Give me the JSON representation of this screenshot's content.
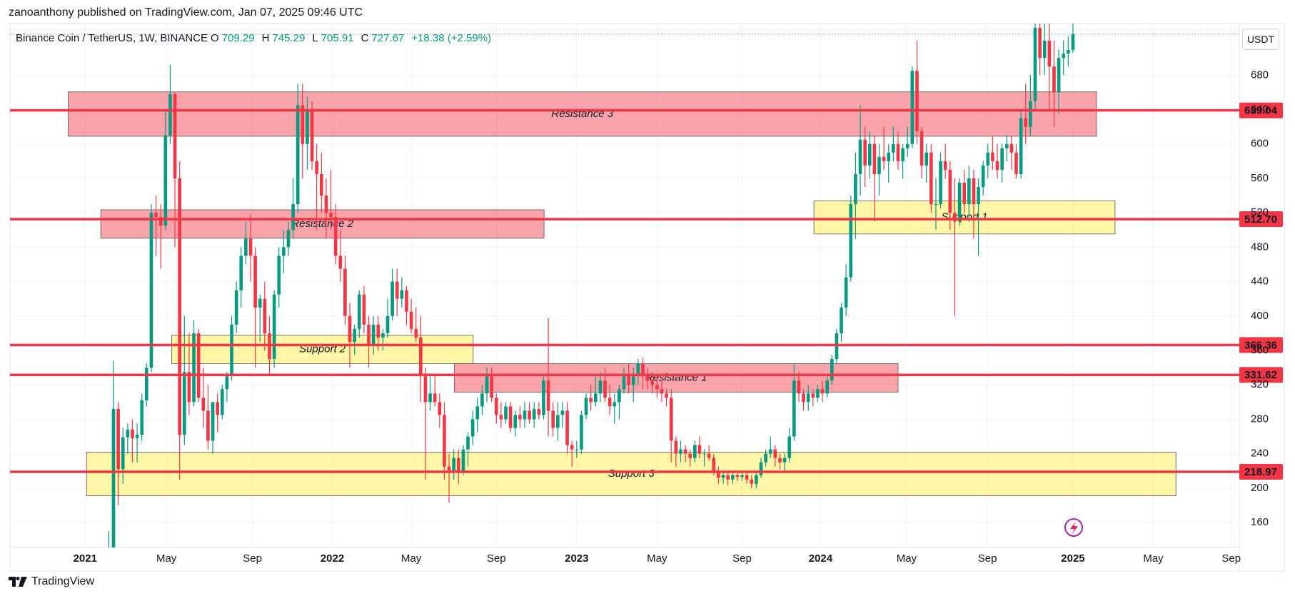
{
  "header": {
    "publisher": "zanoanthony published on TradingView.com, Jan 07, 2025 09:46 UTC"
  },
  "footer": {
    "brand": "TradingView"
  },
  "chart_data": {
    "type": "candlestick",
    "title": "Binance Coin / TetherUS, 1W, BINANCE",
    "legend_fields": [
      {
        "label": "O",
        "value": 709.29
      },
      {
        "label": "H",
        "value": 745.29
      },
      {
        "label": "L",
        "value": 705.91
      },
      {
        "label": "C",
        "value": 727.67
      }
    ],
    "change_label": "+18.38 (+2.59%)",
    "currency": "USDT",
    "up_color": "#089981",
    "down_color": "#f23645",
    "level_color": "#f23645",
    "grid": true,
    "xlim": [
      -20.9,
      239.2
    ],
    "xticks": [
      {
        "value": -5,
        "label": "2021"
      },
      {
        "value": 12.2,
        "label": "May"
      },
      {
        "value": 30.4,
        "label": "Sep"
      },
      {
        "value": 47.3,
        "label": "2022"
      },
      {
        "value": 64,
        "label": "May"
      },
      {
        "value": 82,
        "label": "Sep"
      },
      {
        "value": 99,
        "label": "2023"
      },
      {
        "value": 116,
        "label": "May"
      },
      {
        "value": 134,
        "label": "Sep"
      },
      {
        "value": 150.6,
        "label": "2024"
      },
      {
        "value": 168.8,
        "label": "May"
      },
      {
        "value": 185.9,
        "label": "Sep"
      },
      {
        "value": 204,
        "label": "2025"
      },
      {
        "value": 221,
        "label": "May"
      },
      {
        "value": 237.5,
        "label": "Sep"
      }
    ],
    "ylim": [
      131,
      740
    ],
    "yticks": [
      160,
      200,
      240,
      280,
      320,
      360,
      400,
      440,
      480,
      520,
      560,
      600,
      640,
      680
    ],
    "levels": [
      639.04,
      {
        "value": 512.7,
        "label": "512.70"
      },
      366.36,
      331.62,
      218.97
    ],
    "zones": [
      {
        "label": "Resistance 3",
        "kind": "resistance",
        "x": [
          -8.6,
          209
        ],
        "y": [
          609,
          660.6
        ]
      },
      {
        "label": "Resistance 2",
        "kind": "resistance",
        "x": [
          -1.7,
          92.1
        ],
        "y": [
          490.5,
          523.5
        ]
      },
      {
        "label": "Support 2",
        "kind": "support",
        "x": [
          13.3,
          77.1
        ],
        "y": [
          344.7,
          377.7
        ]
      },
      {
        "label": "Resistance 1",
        "kind": "resistance",
        "x": [
          73.1,
          167
        ],
        "y": [
          311.6,
          344.7
        ]
      },
      {
        "label": "Support 3",
        "kind": "support",
        "x": [
          -4.7,
          225.8
        ],
        "y": [
          191.1,
          241.7
        ]
      },
      {
        "label": "Support 1",
        "kind": "support",
        "x": [
          149.2,
          212.9
        ],
        "y": [
          495.4,
          534
        ]
      }
    ],
    "candles": [
      [
        75,
        150,
        66,
        128
      ],
      [
        128,
        348,
        125,
        292
      ],
      [
        292,
        300,
        180,
        222
      ],
      [
        222,
        270,
        205,
        259
      ],
      [
        259,
        275,
        240,
        268
      ],
      [
        268,
        280,
        230,
        258
      ],
      [
        258,
        275,
        230,
        262
      ],
      [
        262,
        310,
        255,
        302
      ],
      [
        302,
        345,
        295,
        340
      ],
      [
        340,
        530,
        335,
        520
      ],
      [
        520,
        540,
        470,
        515
      ],
      [
        515,
        530,
        455,
        505
      ],
      [
        505,
        640,
        500,
        610
      ],
      [
        610,
        692,
        600,
        658
      ],
      [
        658,
        660,
        480,
        560
      ],
      [
        560,
        580,
        210,
        262
      ],
      [
        262,
        400,
        250,
        335
      ],
      [
        335,
        380,
        285,
        300
      ],
      [
        300,
        395,
        295,
        380
      ],
      [
        380,
        385,
        300,
        305
      ],
      [
        305,
        340,
        270,
        290
      ],
      [
        290,
        320,
        245,
        255
      ],
      [
        255,
        300,
        240,
        300
      ],
      [
        300,
        310,
        265,
        285
      ],
      [
        285,
        320,
        280,
        315
      ],
      [
        315,
        335,
        300,
        330
      ],
      [
        330,
        400,
        325,
        390
      ],
      [
        390,
        440,
        380,
        430
      ],
      [
        430,
        480,
        410,
        470
      ],
      [
        470,
        510,
        460,
        490
      ],
      [
        490,
        518,
        440,
        470
      ],
      [
        470,
        480,
        340,
        410
      ],
      [
        410,
        425,
        370,
        420
      ],
      [
        420,
        440,
        360,
        380
      ],
      [
        380,
        400,
        330,
        350
      ],
      [
        350,
        430,
        340,
        425
      ],
      [
        425,
        480,
        410,
        470
      ],
      [
        470,
        500,
        450,
        480
      ],
      [
        480,
        510,
        470,
        500
      ],
      [
        500,
        560,
        490,
        530
      ],
      [
        530,
        670,
        520,
        645
      ],
      [
        645,
        670,
        560,
        600
      ],
      [
        600,
        655,
        570,
        640
      ],
      [
        640,
        650,
        570,
        580
      ],
      [
        580,
        600,
        500,
        565
      ],
      [
        565,
        590,
        520,
        540
      ],
      [
        540,
        560,
        490,
        520
      ],
      [
        520,
        570,
        500,
        515
      ],
      [
        515,
        530,
        460,
        470
      ],
      [
        470,
        500,
        440,
        455
      ],
      [
        455,
        470,
        390,
        400
      ],
      [
        400,
        415,
        340,
        370
      ],
      [
        370,
        390,
        355,
        385
      ],
      [
        385,
        430,
        375,
        425
      ],
      [
        425,
        435,
        380,
        390
      ],
      [
        390,
        400,
        340,
        365
      ],
      [
        365,
        400,
        355,
        390
      ],
      [
        390,
        400,
        360,
        375
      ],
      [
        375,
        385,
        360,
        380
      ],
      [
        380,
        420,
        375,
        400
      ],
      [
        400,
        455,
        395,
        440
      ],
      [
        440,
        455,
        400,
        420
      ],
      [
        420,
        445,
        410,
        430
      ],
      [
        430,
        435,
        390,
        405
      ],
      [
        405,
        420,
        380,
        385
      ],
      [
        385,
        410,
        370,
        375
      ],
      [
        375,
        400,
        300,
        330
      ],
      [
        330,
        340,
        210,
        300
      ],
      [
        300,
        330,
        290,
        310
      ],
      [
        310,
        330,
        295,
        300
      ],
      [
        300,
        310,
        270,
        285
      ],
      [
        285,
        300,
        210,
        225
      ],
      [
        225,
        240,
        183,
        218
      ],
      [
        218,
        245,
        210,
        235
      ],
      [
        235,
        245,
        205,
        220
      ],
      [
        220,
        250,
        215,
        245
      ],
      [
        245,
        265,
        225,
        260
      ],
      [
        260,
        290,
        250,
        280
      ],
      [
        280,
        305,
        265,
        295
      ],
      [
        295,
        320,
        285,
        310
      ],
      [
        310,
        340,
        300,
        330
      ],
      [
        330,
        340,
        300,
        305
      ],
      [
        305,
        310,
        275,
        285
      ],
      [
        285,
        300,
        270,
        280
      ],
      [
        280,
        300,
        275,
        295
      ],
      [
        295,
        300,
        265,
        270
      ],
      [
        270,
        290,
        260,
        285
      ],
      [
        285,
        295,
        270,
        280
      ],
      [
        280,
        300,
        270,
        290
      ],
      [
        290,
        300,
        275,
        280
      ],
      [
        280,
        300,
        270,
        292
      ],
      [
        292,
        300,
        280,
        285
      ],
      [
        285,
        330,
        280,
        325
      ],
      [
        325,
        398,
        260,
        290
      ],
      [
        290,
        300,
        260,
        270
      ],
      [
        270,
        300,
        255,
        285
      ],
      [
        285,
        300,
        270,
        290
      ],
      [
        290,
        300,
        240,
        250
      ],
      [
        250,
        255,
        225,
        245
      ],
      [
        245,
        255,
        235,
        245
      ],
      [
        245,
        290,
        240,
        285
      ],
      [
        285,
        310,
        280,
        305
      ],
      [
        305,
        320,
        290,
        300
      ],
      [
        300,
        330,
        295,
        310
      ],
      [
        310,
        335,
        300,
        325
      ],
      [
        325,
        340,
        300,
        305
      ],
      [
        305,
        320,
        285,
        295
      ],
      [
        295,
        310,
        275,
        300
      ],
      [
        300,
        320,
        280,
        315
      ],
      [
        315,
        340,
        310,
        330
      ],
      [
        330,
        345,
        310,
        320
      ],
      [
        320,
        340,
        300,
        330
      ],
      [
        330,
        350,
        320,
        345
      ],
      [
        345,
        352,
        315,
        330
      ],
      [
        330,
        340,
        315,
        325
      ],
      [
        325,
        335,
        310,
        320
      ],
      [
        320,
        330,
        305,
        315
      ],
      [
        315,
        325,
        300,
        310
      ],
      [
        310,
        315,
        295,
        305
      ],
      [
        305,
        315,
        230,
        255
      ],
      [
        255,
        260,
        225,
        240
      ],
      [
        240,
        255,
        230,
        245
      ],
      [
        245,
        250,
        230,
        240
      ],
      [
        240,
        245,
        225,
        235
      ],
      [
        235,
        255,
        230,
        250
      ],
      [
        250,
        260,
        235,
        240
      ],
      [
        240,
        245,
        225,
        240
      ],
      [
        240,
        250,
        232,
        235
      ],
      [
        235,
        240,
        215,
        220
      ],
      [
        220,
        225,
        205,
        212
      ],
      [
        212,
        220,
        205,
        215
      ],
      [
        215,
        220,
        203,
        210
      ],
      [
        210,
        218,
        205,
        215
      ],
      [
        215,
        220,
        208,
        213
      ],
      [
        213,
        218,
        208,
        215
      ],
      [
        215,
        220,
        205,
        210
      ],
      [
        210,
        215,
        200,
        205
      ],
      [
        205,
        220,
        200,
        215
      ],
      [
        215,
        235,
        212,
        230
      ],
      [
        230,
        245,
        225,
        240
      ],
      [
        240,
        260,
        235,
        245
      ],
      [
        245,
        250,
        225,
        235
      ],
      [
        235,
        240,
        222,
        230
      ],
      [
        230,
        240,
        220,
        235
      ],
      [
        235,
        270,
        230,
        260
      ],
      [
        260,
        345,
        255,
        325
      ],
      [
        325,
        335,
        300,
        310
      ],
      [
        310,
        315,
        290,
        300
      ],
      [
        300,
        320,
        290,
        310
      ],
      [
        310,
        315,
        295,
        305
      ],
      [
        305,
        320,
        300,
        315
      ],
      [
        315,
        325,
        300,
        310
      ],
      [
        310,
        330,
        305,
        325
      ],
      [
        325,
        355,
        320,
        350
      ],
      [
        350,
        385,
        345,
        380
      ],
      [
        380,
        415,
        370,
        410
      ],
      [
        410,
        460,
        400,
        445
      ],
      [
        445,
        540,
        440,
        530
      ],
      [
        530,
        590,
        490,
        565
      ],
      [
        565,
        645,
        540,
        605
      ],
      [
        605,
        620,
        550,
        575
      ],
      [
        575,
        615,
        560,
        600
      ],
      [
        600,
        610,
        510,
        565
      ],
      [
        565,
        600,
        540,
        585
      ],
      [
        585,
        620,
        570,
        580
      ],
      [
        580,
        600,
        555,
        590
      ],
      [
        590,
        620,
        580,
        600
      ],
      [
        600,
        615,
        570,
        580
      ],
      [
        580,
        600,
        560,
        595
      ],
      [
        595,
        620,
        585,
        600
      ],
      [
        600,
        690,
        595,
        685
      ],
      [
        685,
        720,
        600,
        615
      ],
      [
        615,
        620,
        560,
        575
      ],
      [
        575,
        600,
        555,
        590
      ],
      [
        590,
        600,
        520,
        530
      ],
      [
        530,
        560,
        500,
        530
      ],
      [
        530,
        590,
        525,
        580
      ],
      [
        580,
        600,
        560,
        570
      ],
      [
        570,
        580,
        500,
        520
      ],
      [
        520,
        560,
        400,
        510
      ],
      [
        510,
        560,
        505,
        555
      ],
      [
        555,
        570,
        520,
        530
      ],
      [
        530,
        575,
        510,
        560
      ],
      [
        560,
        570,
        490,
        530
      ],
      [
        530,
        560,
        470,
        550
      ],
      [
        550,
        580,
        540,
        575
      ],
      [
        575,
        600,
        560,
        590
      ],
      [
        590,
        610,
        570,
        580
      ],
      [
        580,
        600,
        560,
        570
      ],
      [
        570,
        600,
        555,
        595
      ],
      [
        595,
        610,
        580,
        600
      ],
      [
        600,
        610,
        570,
        590
      ],
      [
        590,
        600,
        560,
        565
      ],
      [
        565,
        640,
        560,
        630
      ],
      [
        630,
        670,
        600,
        620
      ],
      [
        620,
        680,
        610,
        650
      ],
      [
        650,
        740,
        640,
        735
      ],
      [
        735,
        790,
        680,
        700
      ],
      [
        700,
        760,
        680,
        720
      ],
      [
        720,
        740,
        640,
        690
      ],
      [
        690,
        720,
        620,
        660
      ],
      [
        660,
        710,
        635,
        700
      ],
      [
        700,
        720,
        680,
        705
      ],
      [
        705,
        725,
        690,
        709.29
      ],
      [
        709.29,
        745.29,
        705.91,
        727.67
      ]
    ]
  }
}
